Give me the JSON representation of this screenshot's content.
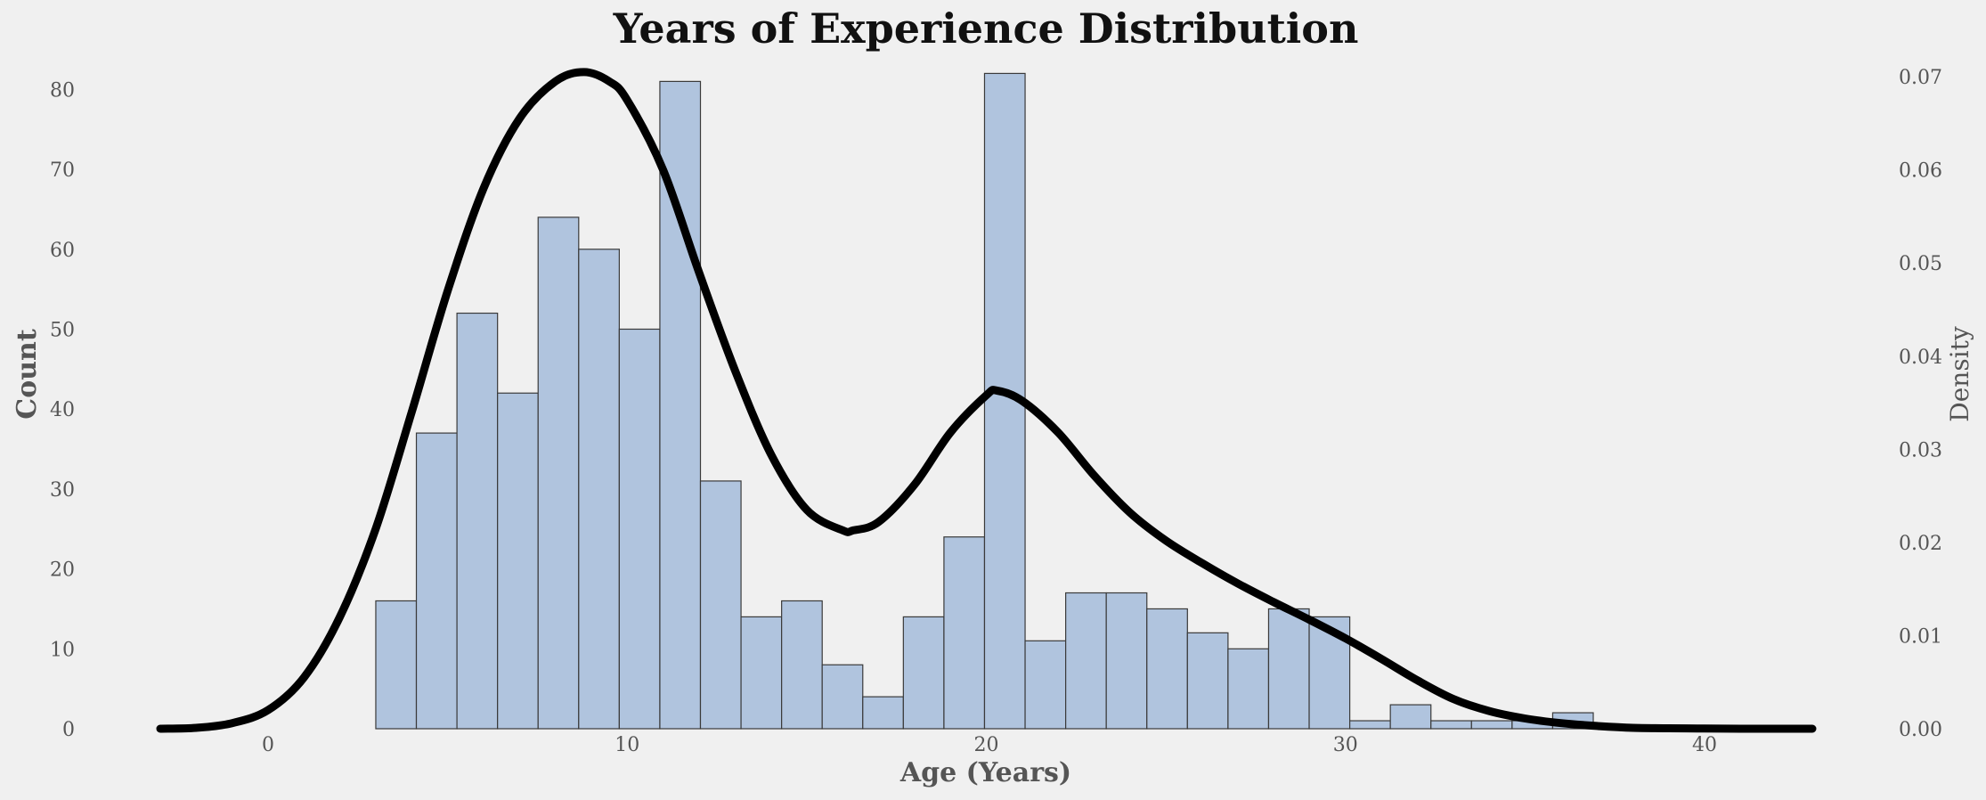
{
  "chart_data": {
    "type": "bar",
    "title": "Years of Experience Distribution",
    "xlabel": "Age (Years)",
    "ylabel": "Count",
    "y2label": "Density",
    "xlim": [
      -3,
      43
    ],
    "ylim": [
      0,
      84.5
    ],
    "y2lim": [
      0,
      0.0725
    ],
    "xticks": [
      "0",
      "10",
      "20",
      "30",
      "40"
    ],
    "yticks": [
      "0",
      "10",
      "20",
      "30",
      "40",
      "50",
      "60",
      "70",
      "80"
    ],
    "y2ticks": [
      "0.00",
      "0.01",
      "0.02",
      "0.03",
      "0.04",
      "0.05",
      "0.06",
      "0.07"
    ],
    "grid": false,
    "histogram": {
      "bin_start": 3.0,
      "bin_width": 1.13,
      "counts": [
        16,
        37,
        52,
        42,
        64,
        60,
        50,
        81,
        31,
        14,
        16,
        8,
        4,
        14,
        24,
        82,
        11,
        17,
        17,
        15,
        12,
        10,
        15,
        14,
        1,
        3,
        1,
        1,
        1,
        2
      ]
    },
    "density": {
      "x": [
        -3,
        -2,
        -1,
        0,
        1,
        2,
        3,
        4,
        5,
        6,
        7,
        8,
        8.8,
        9.5,
        10,
        11,
        12,
        13,
        14,
        15,
        16,
        16.3,
        17,
        18,
        19,
        20,
        20.3,
        21,
        22,
        23,
        24,
        25,
        26,
        27,
        28,
        29,
        30,
        31,
        32,
        33,
        34,
        35,
        36,
        37,
        38,
        39,
        40,
        41,
        42,
        43
      ],
      "y": [
        0.0,
        0.0001,
        0.0006,
        0.002,
        0.0055,
        0.012,
        0.0215,
        0.034,
        0.047,
        0.058,
        0.0655,
        0.0695,
        0.0705,
        0.0695,
        0.0675,
        0.06,
        0.049,
        0.0385,
        0.0295,
        0.0235,
        0.0213,
        0.0213,
        0.0222,
        0.0262,
        0.0318,
        0.0358,
        0.0363,
        0.0352,
        0.0318,
        0.0272,
        0.0232,
        0.0202,
        0.0178,
        0.0156,
        0.0136,
        0.0117,
        0.0097,
        0.0075,
        0.0052,
        0.0032,
        0.0019,
        0.0011,
        0.0006,
        0.0003,
        0.0001,
        5e-05,
        2e-05,
        0.0,
        0.0,
        0.0
      ]
    }
  }
}
